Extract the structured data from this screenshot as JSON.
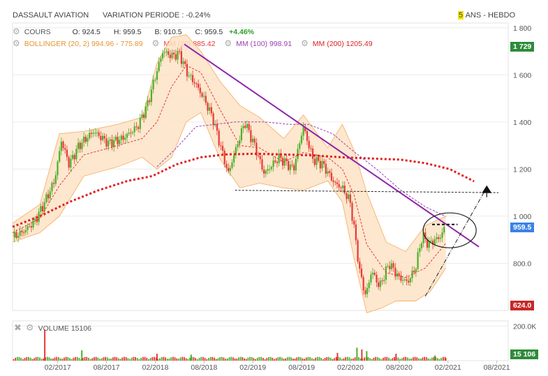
{
  "header": {
    "instrument": "DASSAULT AVIATION",
    "variation": "VARIATION PERIODE : -0.24%",
    "period_hl": "5",
    "period_rest": " ANS - HEBDO"
  },
  "legend": {
    "cours": "COURS",
    "open": "O: 924.5",
    "high": "H: 959.5",
    "low": "B: 910.5",
    "close": "C: 959.5",
    "change": "+4.46%",
    "bollinger": "BOLLINGER (20, 2)  994.96 - 775.89",
    "mm20": "MM (20)  885.42",
    "mm100": "MM (100)  998.91",
    "mm200": "MM (200)  1205.49",
    "volume": "VOLUME  15106"
  },
  "badges": {
    "high": "1 729",
    "last": "959.5",
    "low": "624.0",
    "volume": "15 106"
  },
  "colors": {
    "up": "#4caf28",
    "down": "#e53935",
    "band": "#fde3c6",
    "band_edge": "#f6b26b",
    "mm20": "#e53935",
    "mm100": "#9c3fb5",
    "mm200": "#e02020",
    "trend": "#8e24aa",
    "last_badge": "#3b82e6",
    "high_badge": "#2e8b3a",
    "low_badge": "#c62828"
  },
  "chart_data": {
    "type": "candlestick",
    "y_ticks": [
      "1 800",
      "1 600",
      "1 400",
      "1 200",
      "1 000",
      "800.0"
    ],
    "y_tick_values": [
      1800,
      1600,
      1400,
      1200,
      1000,
      800
    ],
    "ylim": [
      600,
      1820
    ],
    "x_ticks": [
      "02/2017",
      "08/2017",
      "02/2018",
      "08/2018",
      "02/2019",
      "08/2019",
      "02/2020",
      "08/2020",
      "02/2021",
      "08/2021"
    ],
    "x_tick_values": [
      2017.083,
      2017.583,
      2018.083,
      2018.583,
      2019.083,
      2019.583,
      2020.083,
      2020.583,
      2021.083,
      2021.583
    ],
    "xlim": [
      2016.62,
      2021.7
    ],
    "price_path": [
      [
        2016.62,
        910
      ],
      [
        2016.75,
        940
      ],
      [
        2016.85,
        980
      ],
      [
        2016.95,
        1060
      ],
      [
        2017.05,
        1150
      ],
      [
        2017.12,
        1320
      ],
      [
        2017.2,
        1220
      ],
      [
        2017.3,
        1300
      ],
      [
        2017.45,
        1360
      ],
      [
        2017.6,
        1310
      ],
      [
        2017.75,
        1330
      ],
      [
        2017.9,
        1380
      ],
      [
        2018.0,
        1470
      ],
      [
        2018.08,
        1590
      ],
      [
        2018.16,
        1700
      ],
      [
        2018.25,
        1680
      ],
      [
        2018.33,
        1690
      ],
      [
        2018.42,
        1600
      ],
      [
        2018.5,
        1560
      ],
      [
        2018.58,
        1500
      ],
      [
        2018.67,
        1420
      ],
      [
        2018.75,
        1300
      ],
      [
        2018.83,
        1180
      ],
      [
        2018.92,
        1300
      ],
      [
        2019.0,
        1400
      ],
      [
        2019.1,
        1300
      ],
      [
        2019.2,
        1180
      ],
      [
        2019.35,
        1250
      ],
      [
        2019.5,
        1200
      ],
      [
        2019.6,
        1380
      ],
      [
        2019.7,
        1240
      ],
      [
        2019.8,
        1220
      ],
      [
        2019.92,
        1140
      ],
      [
        2020.0,
        1120
      ],
      [
        2020.08,
        1060
      ],
      [
        2020.13,
        920
      ],
      [
        2020.18,
        760
      ],
      [
        2020.24,
        660
      ],
      [
        2020.3,
        770
      ],
      [
        2020.38,
        700
      ],
      [
        2020.48,
        800
      ],
      [
        2020.58,
        740
      ],
      [
        2020.67,
        720
      ],
      [
        2020.75,
        780
      ],
      [
        2020.82,
        920
      ],
      [
        2020.88,
        880
      ],
      [
        2020.95,
        900
      ],
      [
        2021.0,
        910
      ],
      [
        2021.06,
        959.5
      ]
    ],
    "bollinger_upper": [
      [
        2016.62,
        970
      ],
      [
        2016.9,
        1050
      ],
      [
        2017.1,
        1350
      ],
      [
        2017.35,
        1360
      ],
      [
        2017.7,
        1390
      ],
      [
        2017.95,
        1420
      ],
      [
        2018.1,
        1650
      ],
      [
        2018.25,
        1760
      ],
      [
        2018.4,
        1770
      ],
      [
        2018.55,
        1700
      ],
      [
        2018.75,
        1570
      ],
      [
        2018.95,
        1470
      ],
      [
        2019.15,
        1420
      ],
      [
        2019.4,
        1330
      ],
      [
        2019.6,
        1430
      ],
      [
        2019.85,
        1290
      ],
      [
        2020.0,
        1390
      ],
      [
        2020.12,
        1280
      ],
      [
        2020.25,
        1100
      ],
      [
        2020.45,
        890
      ],
      [
        2020.65,
        850
      ],
      [
        2020.85,
        960
      ],
      [
        2021.06,
        1000
      ]
    ],
    "bollinger_lower": [
      [
        2016.62,
        890
      ],
      [
        2016.9,
        930
      ],
      [
        2017.1,
        1000
      ],
      [
        2017.35,
        1170
      ],
      [
        2017.7,
        1210
      ],
      [
        2017.95,
        1250
      ],
      [
        2018.1,
        1200
      ],
      [
        2018.25,
        1250
      ],
      [
        2018.4,
        1400
      ],
      [
        2018.55,
        1440
      ],
      [
        2018.75,
        1240
      ],
      [
        2018.95,
        1120
      ],
      [
        2019.15,
        1140
      ],
      [
        2019.4,
        1120
      ],
      [
        2019.6,
        1110
      ],
      [
        2019.85,
        1150
      ],
      [
        2020.0,
        1060
      ],
      [
        2020.12,
        820
      ],
      [
        2020.25,
        590
      ],
      [
        2020.4,
        610
      ],
      [
        2020.55,
        640
      ],
      [
        2020.75,
        640
      ],
      [
        2020.9,
        680
      ],
      [
        2021.06,
        780
      ]
    ],
    "mm20": [
      [
        2016.62,
        930
      ],
      [
        2016.9,
        990
      ],
      [
        2017.1,
        1130
      ],
      [
        2017.35,
        1260
      ],
      [
        2017.7,
        1300
      ],
      [
        2017.95,
        1330
      ],
      [
        2018.1,
        1400
      ],
      [
        2018.25,
        1550
      ],
      [
        2018.4,
        1640
      ],
      [
        2018.55,
        1610
      ],
      [
        2018.75,
        1450
      ],
      [
        2018.95,
        1300
      ],
      [
        2019.15,
        1290
      ],
      [
        2019.4,
        1230
      ],
      [
        2019.6,
        1270
      ],
      [
        2019.85,
        1250
      ],
      [
        2020.0,
        1200
      ],
      [
        2020.12,
        1090
      ],
      [
        2020.25,
        880
      ],
      [
        2020.45,
        760
      ],
      [
        2020.65,
        740
      ],
      [
        2020.85,
        780
      ],
      [
        2021.06,
        885
      ]
    ],
    "mm100": [
      [
        2018.1,
        1210
      ],
      [
        2018.3,
        1290
      ],
      [
        2018.5,
        1380
      ],
      [
        2018.7,
        1390
      ],
      [
        2018.9,
        1400
      ],
      [
        2019.2,
        1400
      ],
      [
        2019.45,
        1390
      ],
      [
        2019.65,
        1390
      ],
      [
        2019.9,
        1350
      ],
      [
        2020.1,
        1280
      ],
      [
        2020.35,
        1200
      ],
      [
        2020.6,
        1110
      ],
      [
        2020.85,
        1040
      ],
      [
        2021.06,
        999
      ]
    ],
    "mm200": [
      [
        2016.62,
        955
      ],
      [
        2016.9,
        1000
      ],
      [
        2017.2,
        1060
      ],
      [
        2017.5,
        1110
      ],
      [
        2017.8,
        1150
      ],
      [
        2018.05,
        1170
      ],
      [
        2018.3,
        1220
      ],
      [
        2018.55,
        1250
      ],
      [
        2018.8,
        1262
      ],
      [
        2019.1,
        1265
      ],
      [
        2019.4,
        1262
      ],
      [
        2019.7,
        1258
      ],
      [
        2020.0,
        1250
      ],
      [
        2020.3,
        1245
      ],
      [
        2020.6,
        1240
      ],
      [
        2020.85,
        1225
      ],
      [
        2021.1,
        1200
      ],
      [
        2021.35,
        1148
      ]
    ],
    "trendline": [
      [
        2018.38,
        1730
      ],
      [
        2021.4,
        870
      ]
    ],
    "support_line": [
      [
        2018.9,
        1110
      ],
      [
        2021.6,
        1100
      ]
    ],
    "resistance_line": [
      [
        2020.92,
        965
      ],
      [
        2021.18,
        965
      ]
    ],
    "projection_line": [
      [
        2020.85,
        660
      ],
      [
        2021.45,
        1100
      ]
    ],
    "target_arrow": [
      2021.48,
      1110
    ],
    "circle_center": [
      2021.1,
      940
    ],
    "volume": {
      "ylim": [
        0,
        230000
      ],
      "y_tick": "200.0K",
      "y_tick_value": 200000,
      "bars": [
        [
          2016.95,
          180000
        ],
        [
          2017.33,
          60000
        ],
        [
          2018.1,
          40000
        ],
        [
          2018.45,
          35000
        ],
        [
          2019.95,
          45000
        ],
        [
          2020.15,
          75000
        ],
        [
          2020.2,
          65000
        ],
        [
          2020.25,
          55000
        ],
        [
          2020.55,
          40000
        ],
        [
          2020.95,
          30000
        ],
        [
          2021.06,
          15106
        ]
      ]
    }
  }
}
